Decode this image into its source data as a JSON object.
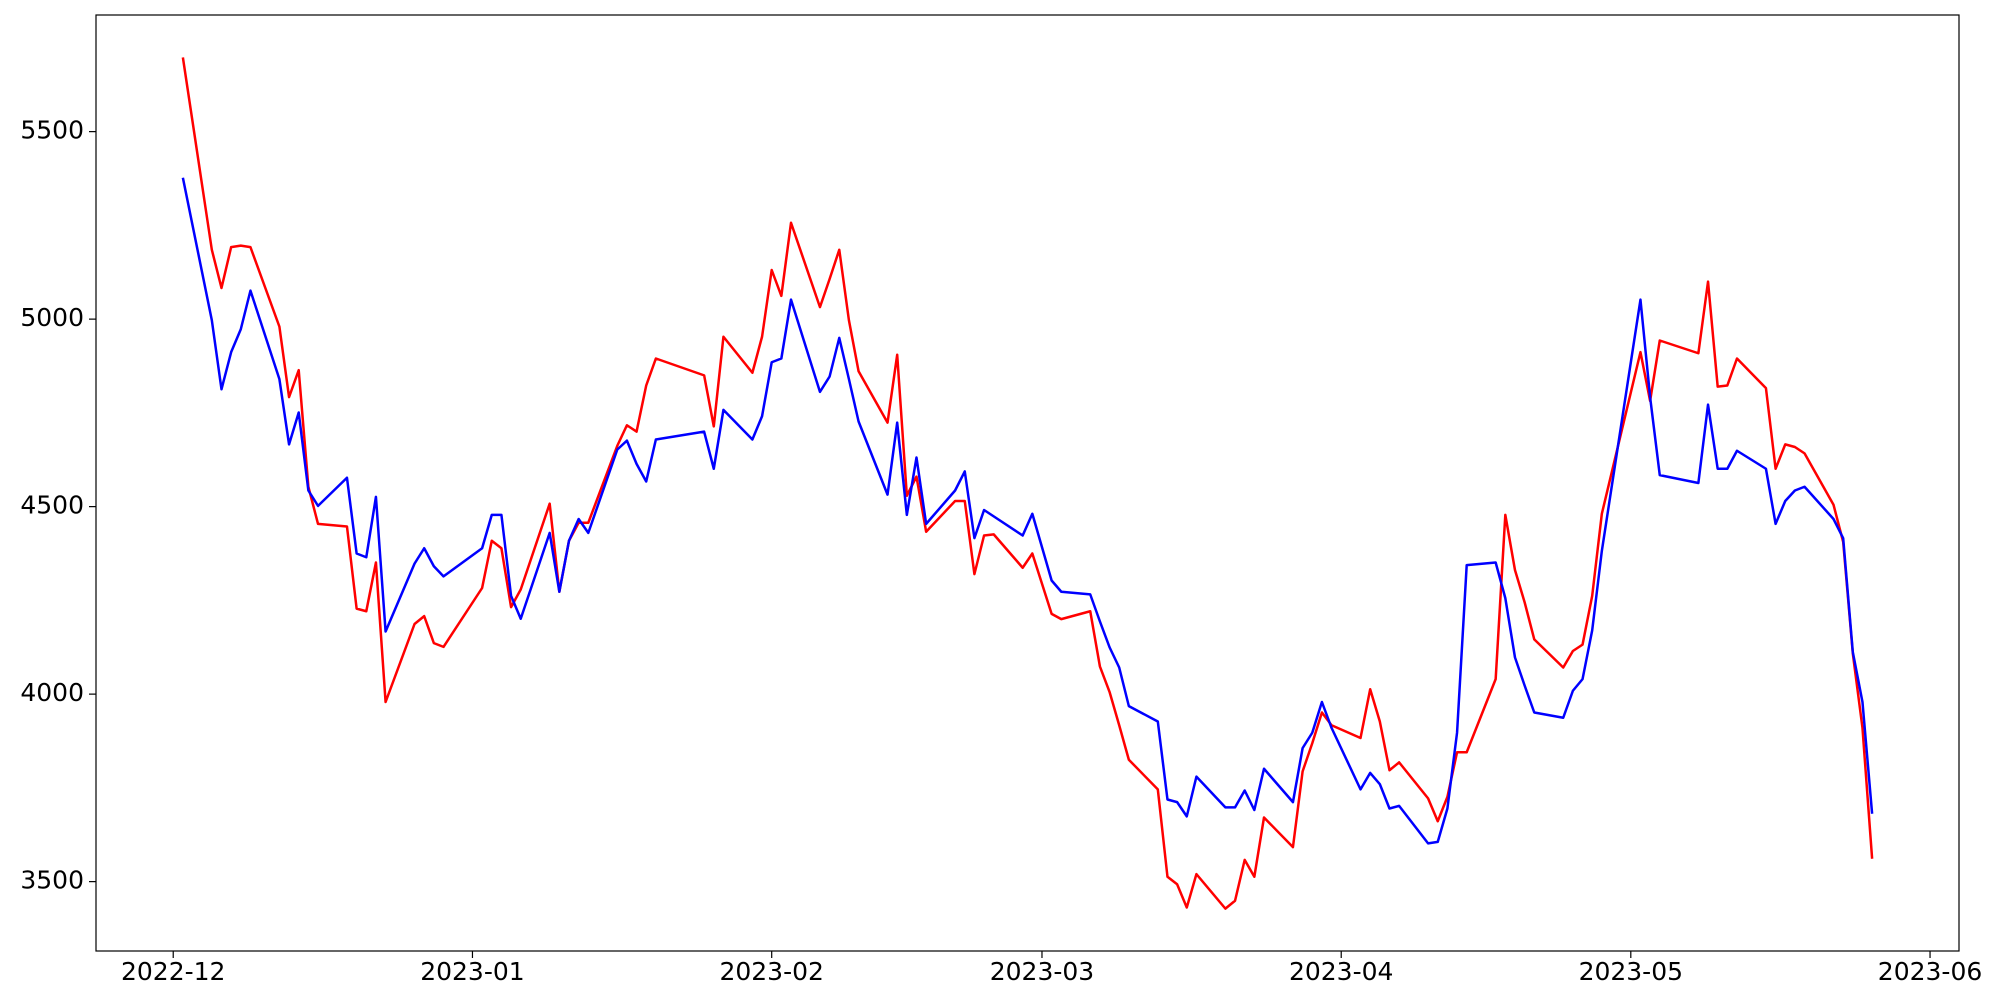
{
  "chart_data": {
    "type": "line",
    "x": [
      "2022-12-02",
      "2022-12-05",
      "2022-12-06",
      "2022-12-07",
      "2022-12-08",
      "2022-12-09",
      "2022-12-12",
      "2022-12-13",
      "2022-12-14",
      "2022-12-15",
      "2022-12-16",
      "2022-12-19",
      "2022-12-20",
      "2022-12-21",
      "2022-12-22",
      "2022-12-23",
      "2022-12-26",
      "2022-12-27",
      "2022-12-28",
      "2022-12-29",
      "2023-01-02",
      "2023-01-03",
      "2023-01-04",
      "2023-01-05",
      "2023-01-06",
      "2023-01-09",
      "2023-01-10",
      "2023-01-11",
      "2023-01-12",
      "2023-01-13",
      "2023-01-16",
      "2023-01-17",
      "2023-01-18",
      "2023-01-19",
      "2023-01-20",
      "2023-01-25",
      "2023-01-26",
      "2023-01-27",
      "2023-01-30",
      "2023-01-31",
      "2023-02-01",
      "2023-02-02",
      "2023-02-03",
      "2023-02-06",
      "2023-02-07",
      "2023-02-08",
      "2023-02-09",
      "2023-02-10",
      "2023-02-13",
      "2023-02-14",
      "2023-02-15",
      "2023-02-16",
      "2023-02-17",
      "2023-02-20",
      "2023-02-21",
      "2023-02-22",
      "2023-02-23",
      "2023-02-24",
      "2023-02-27",
      "2023-02-28",
      "2023-03-02",
      "2023-03-03",
      "2023-03-06",
      "2023-03-07",
      "2023-03-08",
      "2023-03-09",
      "2023-03-10",
      "2023-03-13",
      "2023-03-14",
      "2023-03-15",
      "2023-03-16",
      "2023-03-17",
      "2023-03-20",
      "2023-03-21",
      "2023-03-22",
      "2023-03-23",
      "2023-03-24",
      "2023-03-27",
      "2023-03-28",
      "2023-03-29",
      "2023-03-30",
      "2023-03-31",
      "2023-04-03",
      "2023-04-04",
      "2023-04-05",
      "2023-04-06",
      "2023-04-07",
      "2023-04-10",
      "2023-04-11",
      "2023-04-12",
      "2023-04-13",
      "2023-04-14",
      "2023-04-17",
      "2023-04-18",
      "2023-04-19",
      "2023-04-20",
      "2023-04-21",
      "2023-04-24",
      "2023-04-25",
      "2023-04-26",
      "2023-04-27",
      "2023-04-28",
      "2023-05-02",
      "2023-05-03",
      "2023-05-04",
      "2023-05-08",
      "2023-05-09",
      "2023-05-10",
      "2023-05-11",
      "2023-05-12",
      "2023-05-15",
      "2023-05-16",
      "2023-05-17",
      "2023-05-18",
      "2023-05-19",
      "2023-05-22",
      "2023-05-23",
      "2023-05-24",
      "2023-05-25",
      "2023-05-26"
    ],
    "series": [
      {
        "color": "#ff0000",
        "values": [
          5698,
          5185,
          5083,
          5192,
          5196,
          5192,
          4980,
          4792,
          4864,
          4553,
          4454,
          4447,
          4228,
          4221,
          4351,
          3979,
          4187,
          4208,
          4136,
          4126,
          4283,
          4409,
          4389,
          4232,
          4279,
          4508,
          4273,
          4409,
          4457,
          4457,
          4662,
          4717,
          4700,
          4823,
          4895,
          4850,
          4714,
          4953,
          4857,
          4953,
          5131,
          5062,
          5257,
          5032,
          5107,
          5185,
          4997,
          4861,
          4724,
          4905,
          4529,
          4580,
          4433,
          4515,
          4515,
          4320,
          4423,
          4426,
          4337,
          4375,
          4214,
          4200,
          4221,
          4074,
          4006,
          3917,
          3825,
          3746,
          3513,
          3493,
          3431,
          3520,
          3428,
          3449,
          3558,
          3513,
          3671,
          3592,
          3794,
          3869,
          3951,
          3917,
          3883,
          4013,
          3927,
          3797,
          3818,
          3722,
          3661,
          3726,
          3845,
          3845,
          4040,
          4478,
          4331,
          4245,
          4146,
          4071,
          4115,
          4132,
          4262,
          4481,
          4912,
          4782,
          4943,
          4909,
          5100,
          4820,
          4823,
          4895,
          4816,
          4601,
          4666,
          4659,
          4642,
          4505,
          4406,
          4108,
          3910,
          3561
        ]
      },
      {
        "color": "#0000ff",
        "values": [
          5377,
          4997,
          4813,
          4912,
          4973,
          5076,
          4840,
          4666,
          4751,
          4543,
          4502,
          4577,
          4375,
          4365,
          4526,
          4167,
          4348,
          4389,
          4341,
          4314,
          4389,
          4478,
          4478,
          4262,
          4201,
          4430,
          4273,
          4409,
          4467,
          4430,
          4652,
          4676,
          4614,
          4567,
          4679,
          4700,
          4601,
          4758,
          4679,
          4741,
          4885,
          4895,
          5052,
          4806,
          4847,
          4950,
          4840,
          4727,
          4532,
          4724,
          4478,
          4631,
          4454,
          4543,
          4594,
          4416,
          4491,
          4474,
          4423,
          4481,
          4303,
          4273,
          4266,
          4194,
          4125,
          4071,
          3968,
          3927,
          3719,
          3712,
          3674,
          3780,
          3698,
          3698,
          3743,
          3691,
          3801,
          3712,
          3856,
          3897,
          3979,
          3910,
          3746,
          3790,
          3760,
          3695,
          3702,
          3602,
          3606,
          3695,
          3897,
          4344,
          4351,
          4256,
          4098,
          4023,
          3951,
          3937,
          4009,
          4040,
          4170,
          4382,
          5052,
          4792,
          4584,
          4563,
          4772,
          4601,
          4601,
          4649,
          4601,
          4454,
          4515,
          4543,
          4553,
          4467,
          4416,
          4112,
          3979,
          3681
        ]
      }
    ],
    "xlim": [
      "2022-11-23",
      "2023-06-04"
    ],
    "xticks": [
      {
        "value": "2022-12-01",
        "label": "2022-12"
      },
      {
        "value": "2023-01-01",
        "label": "2023-01"
      },
      {
        "value": "2023-02-01",
        "label": "2023-02"
      },
      {
        "value": "2023-03-01",
        "label": "2023-03"
      },
      {
        "value": "2023-04-01",
        "label": "2023-04"
      },
      {
        "value": "2023-05-01",
        "label": "2023-05"
      },
      {
        "value": "2023-06-01",
        "label": "2023-06"
      }
    ],
    "ylim": [
      3315,
      5811
    ],
    "yticks": [
      3500,
      4000,
      4500,
      5000,
      5500
    ],
    "grid": false
  }
}
